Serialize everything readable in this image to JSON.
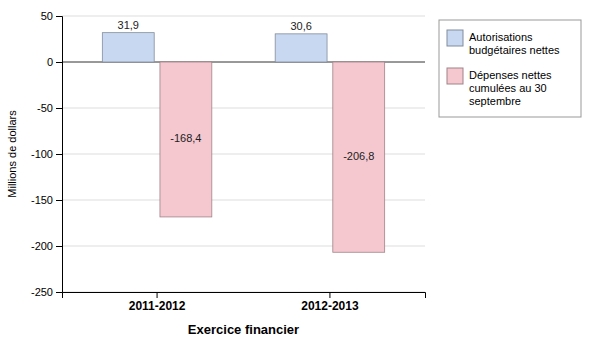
{
  "chart_data": {
    "type": "bar",
    "categories": [
      "2011-2012",
      "2012-2013"
    ],
    "series": [
      {
        "name": "Autorisations\nbudgétaires nettes",
        "color": "#c8d8f0",
        "values": [
          31.9,
          30.6
        ],
        "value_labels": [
          "31,9",
          "30,6"
        ]
      },
      {
        "name": "Dépenses nettes\ncumulées au 30\nseptembre",
        "color": "#f5c8d0",
        "values": [
          -168.4,
          -206.8
        ],
        "value_labels": [
          "-168,4",
          "-206,8"
        ]
      }
    ],
    "xlabel": "Exercice financier",
    "ylabel": "Millions de dollars",
    "ylim": [
      -250,
      50
    ],
    "yticks": [
      50,
      0,
      -50,
      -100,
      -150,
      -200,
      -250
    ],
    "grid": true,
    "legend": "right",
    "data_labels": true
  }
}
